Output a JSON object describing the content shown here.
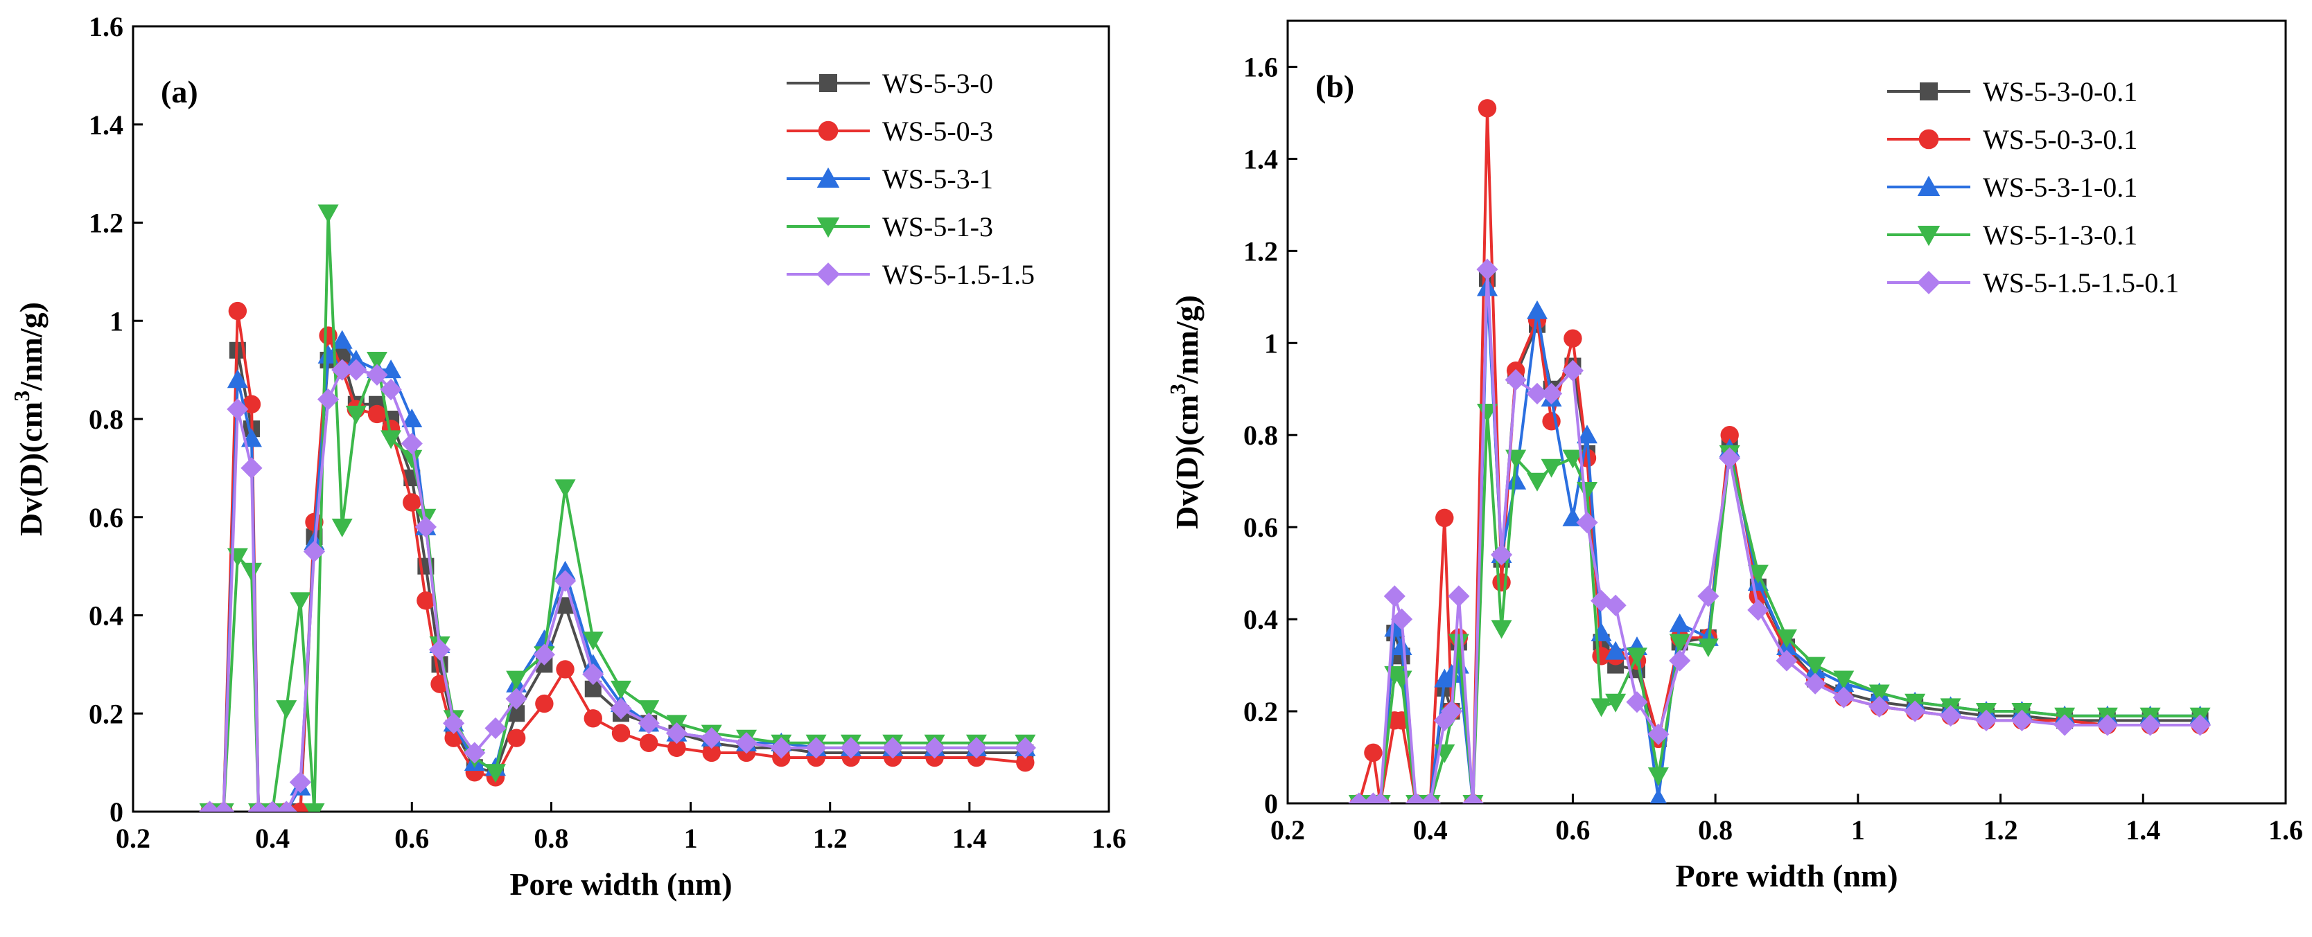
{
  "chart_data": [
    {
      "type": "line",
      "panel_label": "(a)",
      "xlabel": "Pore width (nm)",
      "ylabel": "Dv(D)(cm3/nm/g)",
      "ylabel_parts": {
        "pre": "Dv(D)(cm",
        "sup": "3",
        "post": "/nm/g)"
      },
      "xlim": [
        0.2,
        1.6
      ],
      "ylim": [
        0,
        1.6
      ],
      "xticks": [
        0.2,
        0.4,
        0.6,
        0.8,
        1,
        1.2,
        1.4,
        1.6
      ],
      "xtick_labels": [
        "0.2",
        "0.4",
        "0.6",
        "0.8",
        "1",
        "1.2",
        "1.4",
        "1.6"
      ],
      "yticks": [
        0,
        0.2,
        0.4,
        0.6,
        0.8,
        1,
        1.2,
        1.4,
        1.6
      ],
      "ytick_labels": [
        "0",
        "0.2",
        "0.4",
        "0.6",
        "0.8",
        "1",
        "1.2",
        "1.4",
        "1.6"
      ],
      "grid": false,
      "legend_position": "top-right",
      "series": [
        {
          "name": "WS-5-3-0",
          "color": "#4d4d4d",
          "marker": "square",
          "x": [
            0.31,
            0.33,
            0.35,
            0.37,
            0.38,
            0.4,
            0.42,
            0.44,
            0.46,
            0.48,
            0.5,
            0.52,
            0.55,
            0.57,
            0.6,
            0.62,
            0.64,
            0.66,
            0.69,
            0.72,
            0.75,
            0.79,
            0.82,
            0.86,
            0.9,
            0.94,
            0.98,
            1.03,
            1.08,
            1.13,
            1.18,
            1.23,
            1.29,
            1.35,
            1.41,
            1.48
          ],
          "y": [
            0,
            0,
            0.94,
            0.78,
            0,
            0,
            0,
            0,
            0.56,
            0.92,
            0.93,
            0.83,
            0.83,
            0.8,
            0.68,
            0.5,
            0.3,
            0.17,
            0.09,
            0.08,
            0.2,
            0.3,
            0.42,
            0.25,
            0.2,
            0.18,
            0.16,
            0.14,
            0.13,
            0.13,
            0.12,
            0.12,
            0.12,
            0.12,
            0.12,
            0.12
          ]
        },
        {
          "name": "WS-5-0-3",
          "color": "#e8302e",
          "marker": "circle",
          "x": [
            0.31,
            0.33,
            0.35,
            0.37,
            0.38,
            0.4,
            0.42,
            0.44,
            0.46,
            0.48,
            0.5,
            0.52,
            0.55,
            0.57,
            0.6,
            0.62,
            0.64,
            0.66,
            0.69,
            0.72,
            0.75,
            0.79,
            0.82,
            0.86,
            0.9,
            0.94,
            0.98,
            1.03,
            1.08,
            1.13,
            1.18,
            1.23,
            1.29,
            1.35,
            1.41,
            1.48
          ],
          "y": [
            0,
            0,
            1.02,
            0.83,
            0,
            0,
            0,
            0,
            0.59,
            0.97,
            0.9,
            0.82,
            0.81,
            0.78,
            0.63,
            0.43,
            0.26,
            0.15,
            0.08,
            0.07,
            0.15,
            0.22,
            0.29,
            0.19,
            0.16,
            0.14,
            0.13,
            0.12,
            0.12,
            0.11,
            0.11,
            0.11,
            0.11,
            0.11,
            0.11,
            0.1
          ]
        },
        {
          "name": "WS-5-3-1",
          "color": "#2a6fe0",
          "marker": "triangle-up",
          "x": [
            0.31,
            0.33,
            0.35,
            0.37,
            0.38,
            0.4,
            0.42,
            0.44,
            0.46,
            0.48,
            0.5,
            0.52,
            0.55,
            0.57,
            0.6,
            0.62,
            0.64,
            0.66,
            0.69,
            0.72,
            0.75,
            0.79,
            0.82,
            0.86,
            0.9,
            0.94,
            0.98,
            1.03,
            1.08,
            1.13,
            1.18,
            1.23,
            1.29,
            1.35,
            1.41,
            1.48
          ],
          "y": [
            0,
            0,
            0.88,
            0.76,
            0,
            0,
            0,
            0.05,
            0.55,
            0.93,
            0.96,
            0.92,
            0.9,
            0.9,
            0.8,
            0.58,
            0.34,
            0.18,
            0.1,
            0.09,
            0.26,
            0.35,
            0.49,
            0.3,
            0.22,
            0.18,
            0.16,
            0.15,
            0.14,
            0.14,
            0.13,
            0.13,
            0.13,
            0.13,
            0.13,
            0.13
          ]
        },
        {
          "name": "WS-5-1-3",
          "color": "#3cb84a",
          "marker": "triangle-down",
          "x": [
            0.31,
            0.33,
            0.35,
            0.37,
            0.38,
            0.4,
            0.42,
            0.44,
            0.46,
            0.48,
            0.5,
            0.52,
            0.55,
            0.57,
            0.6,
            0.62,
            0.64,
            0.66,
            0.69,
            0.72,
            0.75,
            0.79,
            0.82,
            0.86,
            0.9,
            0.94,
            0.98,
            1.03,
            1.08,
            1.13,
            1.18,
            1.23,
            1.29,
            1.35,
            1.41,
            1.48
          ],
          "y": [
            0,
            0,
            0.52,
            0.49,
            0,
            0,
            0.21,
            0.43,
            0,
            1.22,
            0.58,
            0.81,
            0.92,
            0.76,
            0.72,
            0.6,
            0.34,
            0.19,
            0.11,
            0.08,
            0.27,
            0.32,
            0.66,
            0.35,
            0.25,
            0.21,
            0.18,
            0.16,
            0.15,
            0.14,
            0.14,
            0.14,
            0.14,
            0.14,
            0.14,
            0.14
          ]
        },
        {
          "name": "WS-5-1.5-1.5",
          "color": "#b07ef0",
          "marker": "diamond",
          "x": [
            0.31,
            0.33,
            0.35,
            0.37,
            0.38,
            0.4,
            0.42,
            0.44,
            0.46,
            0.48,
            0.5,
            0.52,
            0.55,
            0.57,
            0.6,
            0.62,
            0.64,
            0.66,
            0.69,
            0.72,
            0.75,
            0.79,
            0.82,
            0.86,
            0.9,
            0.94,
            0.98,
            1.03,
            1.08,
            1.13,
            1.18,
            1.23,
            1.29,
            1.35,
            1.41,
            1.48
          ],
          "y": [
            0,
            0,
            0.82,
            0.7,
            0,
            0,
            0,
            0.06,
            0.53,
            0.84,
            0.9,
            0.9,
            0.89,
            0.86,
            0.75,
            0.58,
            0.33,
            0.18,
            0.12,
            0.17,
            0.23,
            0.32,
            0.47,
            0.28,
            0.21,
            0.18,
            0.16,
            0.15,
            0.14,
            0.13,
            0.13,
            0.13,
            0.13,
            0.13,
            0.13,
            0.13
          ]
        }
      ]
    },
    {
      "type": "line",
      "panel_label": "(b)",
      "xlabel": "Pore width (nm)",
      "ylabel": "Dv(D)(cm3/nm/g)",
      "ylabel_parts": {
        "pre": "Dv(D)(cm",
        "sup": "3",
        "post": "/nm/g)"
      },
      "xlim": [
        0.2,
        1.6
      ],
      "ylim": [
        0,
        1.7
      ],
      "xticks": [
        0.2,
        0.4,
        0.6,
        0.8,
        1,
        1.2,
        1.4,
        1.6
      ],
      "xtick_labels": [
        "0.2",
        "0.4",
        "0.6",
        "0.8",
        "1",
        "1.2",
        "1.4",
        "1.6"
      ],
      "yticks": [
        0,
        0.2,
        0.4,
        0.6,
        0.8,
        1,
        1.2,
        1.4,
        1.6
      ],
      "ytick_labels": [
        "0",
        "0.2",
        "0.4",
        "0.6",
        "0.8",
        "1",
        "1.2",
        "1.4",
        "1.6"
      ],
      "grid": false,
      "legend_position": "top-right",
      "series": [
        {
          "name": "WS-5-3-0-0.1",
          "color": "#4d4d4d",
          "marker": "square",
          "x": [
            0.3,
            0.32,
            0.33,
            0.35,
            0.36,
            0.38,
            0.4,
            0.42,
            0.43,
            0.44,
            0.46,
            0.48,
            0.5,
            0.52,
            0.55,
            0.57,
            0.6,
            0.62,
            0.64,
            0.66,
            0.69,
            0.72,
            0.75,
            0.79,
            0.82,
            0.86,
            0.9,
            0.94,
            0.98,
            1.03,
            1.08,
            1.13,
            1.18,
            1.23,
            1.29,
            1.35,
            1.41,
            1.48
          ],
          "y": [
            0,
            0,
            0,
            0.37,
            0.32,
            0,
            0,
            0.25,
            0.2,
            0.35,
            0,
            1.14,
            0.53,
            0.93,
            1.04,
            0.9,
            0.95,
            0.76,
            0.35,
            0.3,
            0.29,
            0.14,
            0.35,
            0.36,
            0.78,
            0.47,
            0.34,
            0.27,
            0.24,
            0.22,
            0.21,
            0.2,
            0.19,
            0.19,
            0.18,
            0.18,
            0.18,
            0.18
          ]
        },
        {
          "name": "WS-5-0-3-0.1",
          "color": "#e8302e",
          "marker": "circle",
          "x": [
            0.3,
            0.32,
            0.33,
            0.35,
            0.36,
            0.38,
            0.4,
            0.42,
            0.43,
            0.44,
            0.46,
            0.48,
            0.5,
            0.52,
            0.55,
            0.57,
            0.6,
            0.62,
            0.64,
            0.66,
            0.69,
            0.72,
            0.75,
            0.79,
            0.82,
            0.86,
            0.9,
            0.94,
            0.98,
            1.03,
            1.08,
            1.13,
            1.18,
            1.23,
            1.29,
            1.35,
            1.41,
            1.48
          ],
          "y": [
            0,
            0.11,
            0,
            0.18,
            0.18,
            0,
            0,
            0.62,
            0.2,
            0.36,
            0,
            1.51,
            0.48,
            0.94,
            1.05,
            0.83,
            1.01,
            0.75,
            0.32,
            0.32,
            0.31,
            0.14,
            0.36,
            0.36,
            0.8,
            0.45,
            0.33,
            0.27,
            0.23,
            0.21,
            0.2,
            0.19,
            0.18,
            0.18,
            0.18,
            0.17,
            0.17,
            0.17
          ]
        },
        {
          "name": "WS-5-3-1-0.1",
          "color": "#2a6fe0",
          "marker": "triangle-up",
          "x": [
            0.3,
            0.32,
            0.33,
            0.35,
            0.36,
            0.38,
            0.4,
            0.42,
            0.43,
            0.44,
            0.46,
            0.48,
            0.5,
            0.52,
            0.55,
            0.57,
            0.6,
            0.62,
            0.64,
            0.66,
            0.69,
            0.72,
            0.75,
            0.79,
            0.82,
            0.86,
            0.9,
            0.94,
            0.98,
            1.03,
            1.08,
            1.13,
            1.18,
            1.23,
            1.29,
            1.35,
            1.41,
            1.48
          ],
          "y": [
            0,
            0,
            0,
            0.38,
            0.34,
            0,
            0,
            0.27,
            0.28,
            0.3,
            0,
            1.12,
            0.54,
            0.7,
            1.07,
            0.88,
            0.62,
            0.8,
            0.37,
            0.33,
            0.34,
            0.01,
            0.39,
            0.36,
            0.77,
            0.48,
            0.34,
            0.29,
            0.26,
            0.24,
            0.22,
            0.21,
            0.2,
            0.2,
            0.19,
            0.19,
            0.19,
            0.19
          ]
        },
        {
          "name": "WS-5-1-3-0.1",
          "color": "#3cb84a",
          "marker": "triangle-down",
          "x": [
            0.3,
            0.32,
            0.33,
            0.35,
            0.36,
            0.38,
            0.4,
            0.42,
            0.43,
            0.44,
            0.46,
            0.48,
            0.5,
            0.52,
            0.55,
            0.57,
            0.6,
            0.62,
            0.64,
            0.66,
            0.69,
            0.72,
            0.75,
            0.79,
            0.82,
            0.86,
            0.9,
            0.94,
            0.98,
            1.03,
            1.08,
            1.13,
            1.18,
            1.23,
            1.29,
            1.35,
            1.41,
            1.48
          ],
          "y": [
            0,
            0,
            0,
            0.28,
            0.27,
            0,
            0,
            0.11,
            0.19,
            0.35,
            0,
            0.85,
            0.38,
            0.75,
            0.7,
            0.73,
            0.75,
            0.68,
            0.21,
            0.22,
            0.32,
            0.06,
            0.35,
            0.34,
            0.76,
            0.5,
            0.36,
            0.3,
            0.27,
            0.24,
            0.22,
            0.21,
            0.2,
            0.2,
            0.19,
            0.19,
            0.19,
            0.19
          ]
        },
        {
          "name": "WS-5-1.5-1.5-0.1",
          "color": "#b07ef0",
          "marker": "diamond",
          "x": [
            0.3,
            0.32,
            0.33,
            0.35,
            0.36,
            0.38,
            0.4,
            0.42,
            0.43,
            0.44,
            0.46,
            0.48,
            0.5,
            0.52,
            0.55,
            0.57,
            0.6,
            0.62,
            0.64,
            0.66,
            0.69,
            0.72,
            0.75,
            0.79,
            0.82,
            0.86,
            0.9,
            0.94,
            0.98,
            1.03,
            1.08,
            1.13,
            1.18,
            1.23,
            1.29,
            1.35,
            1.41,
            1.48
          ],
          "y": [
            0,
            0,
            0,
            0.45,
            0.4,
            0,
            0,
            0.18,
            0.2,
            0.45,
            0,
            1.16,
            0.54,
            0.92,
            0.89,
            0.89,
            0.94,
            0.61,
            0.44,
            0.43,
            0.22,
            0.15,
            0.31,
            0.45,
            0.75,
            0.42,
            0.31,
            0.26,
            0.23,
            0.21,
            0.2,
            0.19,
            0.18,
            0.18,
            0.17,
            0.17,
            0.17,
            0.17
          ]
        }
      ]
    }
  ]
}
